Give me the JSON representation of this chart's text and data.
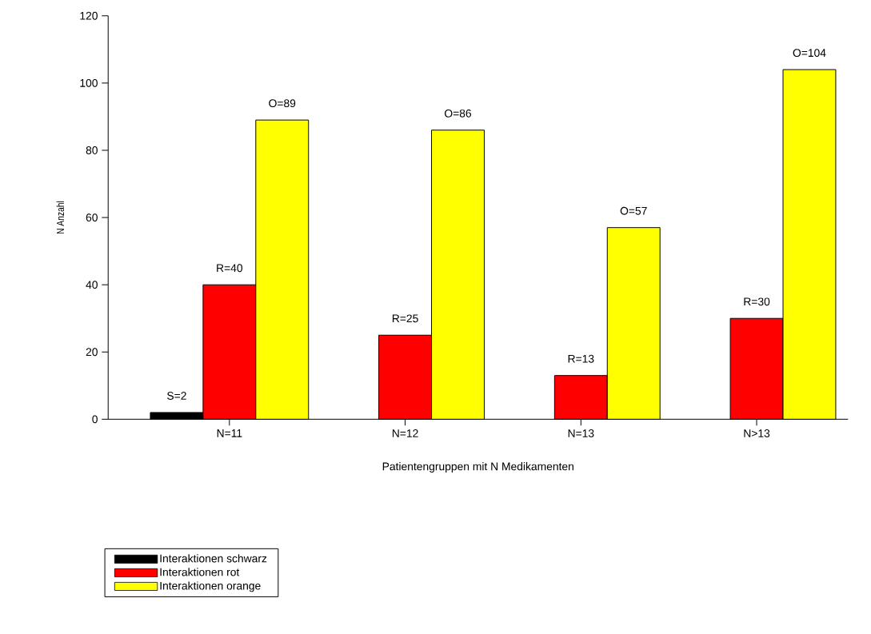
{
  "chart_data": {
    "type": "bar",
    "xlabel": "Patientengruppen mit N Medikamenten",
    "ylabel": "N Anzahl",
    "categories": [
      "N=11",
      "N=12",
      "N=13",
      "N>13"
    ],
    "series": [
      {
        "name": "Interaktionen schwarz",
        "color": "#000000",
        "values": [
          2,
          null,
          null,
          null
        ],
        "value_labels": [
          "S=2",
          null,
          null,
          null
        ]
      },
      {
        "name": "Interaktionen rot",
        "color": "#ff0000",
        "values": [
          40,
          25,
          13,
          30
        ],
        "value_labels": [
          "R=40",
          "R=25",
          "R=13",
          "R=30"
        ]
      },
      {
        "name": "Interaktionen orange",
        "color": "#ffff00",
        "values": [
          89,
          86,
          57,
          104
        ],
        "value_labels": [
          "O=89",
          "O=86",
          "O=57",
          "O=104"
        ]
      }
    ],
    "ylim": [
      0,
      120
    ],
    "yticks": [
      0,
      20,
      40,
      60,
      80,
      100,
      120
    ],
    "legend": "bottom left"
  }
}
